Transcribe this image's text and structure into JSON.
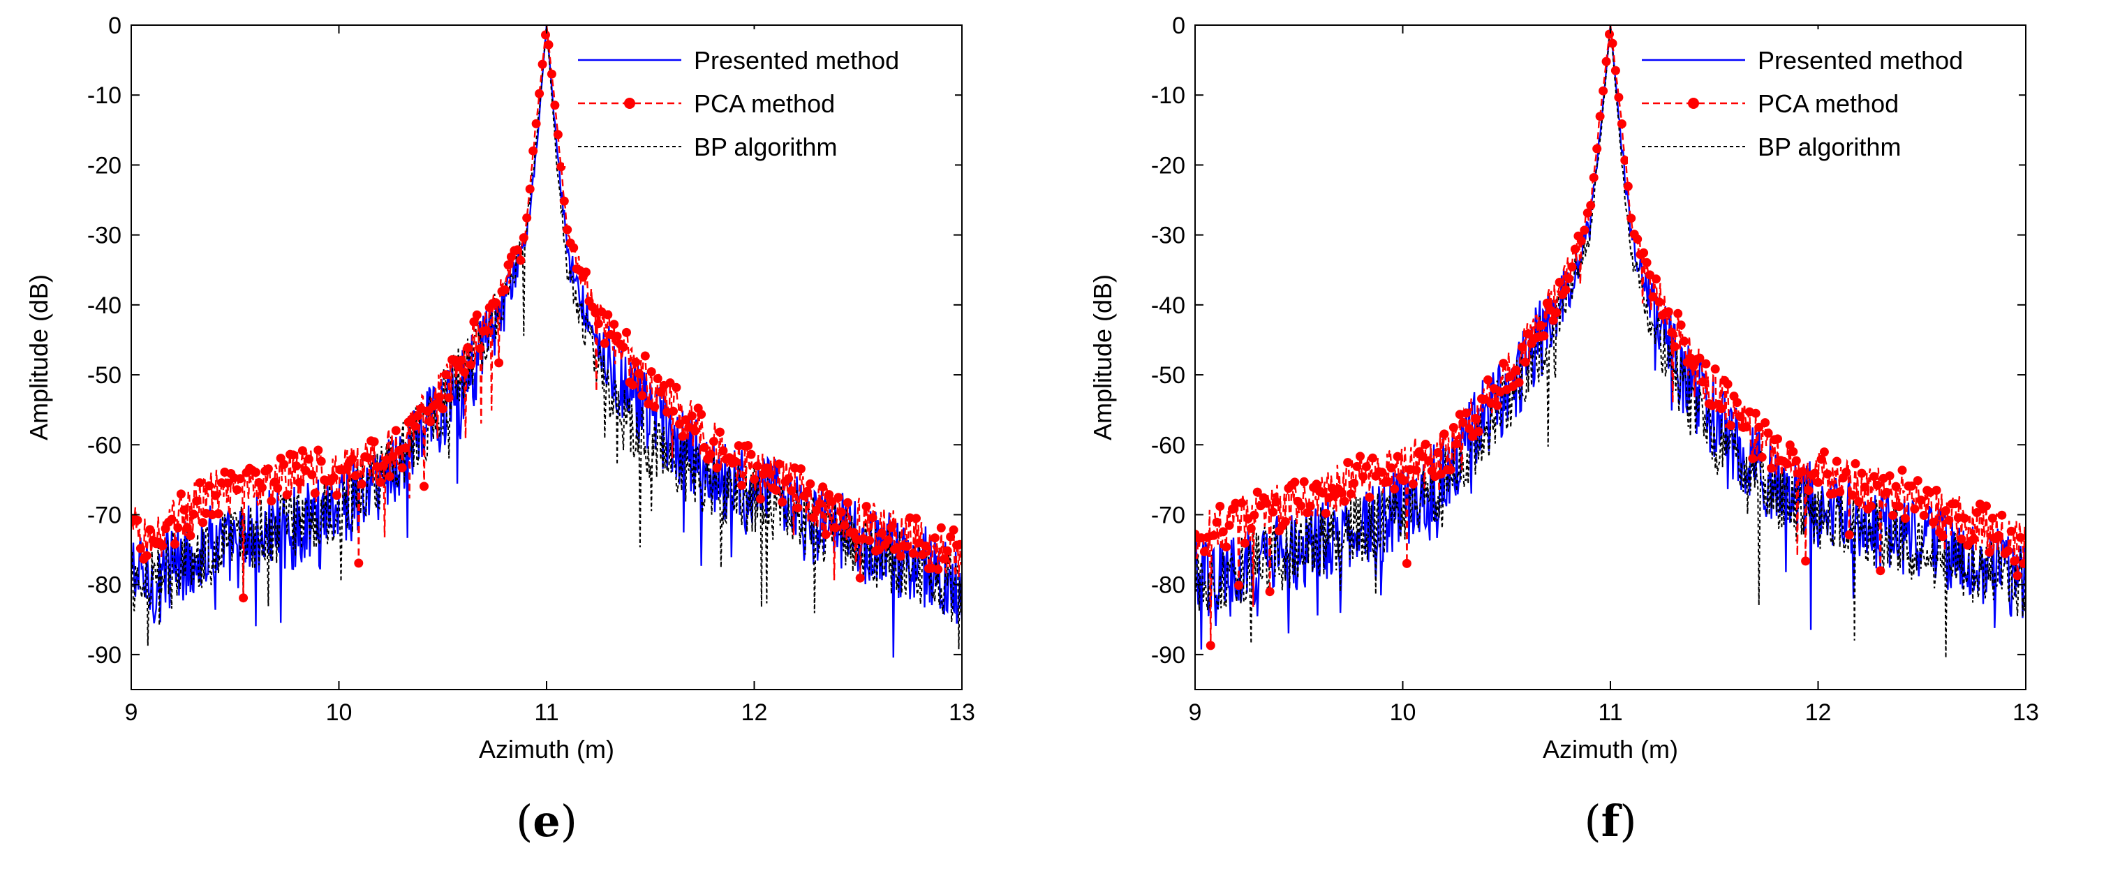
{
  "figure": {
    "legend": [
      "Presented method",
      "PCA method",
      "BP algorithm"
    ]
  },
  "colors": {
    "presented": "#0000ff",
    "pca": "#ff0000",
    "bp": "#000000"
  },
  "chart_data": [
    {
      "type": "line",
      "panel_label": "(e)",
      "xlabel": "Azimuth (m)",
      "ylabel": "Amplitude (dB)",
      "xlim": [
        9,
        13
      ],
      "ylim": [
        -95,
        0
      ],
      "xticks": [
        9,
        10,
        11,
        12,
        13
      ],
      "yticks": [
        0,
        -10,
        -20,
        -30,
        -40,
        -50,
        -60,
        -70,
        -80,
        -90
      ],
      "legend_position": "top-right",
      "series": [
        {
          "name": "Presented method",
          "style": "solid",
          "x": [
            9.0,
            9.1,
            9.2,
            9.3,
            9.4,
            9.5,
            9.6,
            9.7,
            9.8,
            9.9,
            10.0,
            10.1,
            10.2,
            10.3,
            10.4,
            10.5,
            10.6,
            10.7,
            10.8,
            10.9,
            10.95,
            11.0,
            11.05,
            11.1,
            11.2,
            11.3,
            11.4,
            11.5,
            11.6,
            11.7,
            11.8,
            11.9,
            12.0,
            12.1,
            12.2,
            12.3,
            12.4,
            12.5,
            12.6,
            12.7,
            12.8,
            12.9,
            13.0
          ],
          "values": [
            -78,
            -80,
            -77,
            -76,
            -74,
            -75,
            -73,
            -72,
            -72,
            -70,
            -68,
            -68,
            -65,
            -62,
            -58,
            -55,
            -52,
            -46,
            -40,
            -31,
            -18,
            0,
            -18,
            -32,
            -42,
            -48,
            -53,
            -56,
            -60,
            -62,
            -64,
            -66,
            -67,
            -68,
            -70,
            -72,
            -72,
            -74,
            -75,
            -76,
            -77,
            -79,
            -80
          ]
        },
        {
          "name": "PCA method",
          "style": "dashed-marker",
          "x": [
            9.0,
            9.1,
            9.2,
            9.3,
            9.4,
            9.5,
            9.6,
            9.7,
            9.8,
            9.9,
            10.0,
            10.1,
            10.2,
            10.3,
            10.4,
            10.5,
            10.6,
            10.7,
            10.8,
            10.9,
            10.95,
            11.0,
            11.05,
            11.1,
            11.2,
            11.3,
            11.4,
            11.5,
            11.6,
            11.7,
            11.8,
            11.9,
            12.0,
            12.1,
            12.2,
            12.3,
            12.4,
            12.5,
            12.6,
            12.7,
            12.8,
            12.9,
            13.0
          ],
          "values": [
            -72,
            -74,
            -71,
            -69,
            -67,
            -67,
            -66,
            -65,
            -64,
            -64,
            -64,
            -63,
            -62,
            -60,
            -56,
            -52,
            -48,
            -43,
            -37,
            -29,
            -14,
            0,
            -14,
            -30,
            -38,
            -44,
            -48,
            -51,
            -54,
            -57,
            -60,
            -62,
            -64,
            -65,
            -66,
            -69,
            -70,
            -71,
            -72,
            -73,
            -74,
            -75,
            -76
          ]
        },
        {
          "name": "BP algorithm",
          "style": "dotted",
          "x": [
            9.0,
            9.1,
            9.2,
            9.3,
            9.4,
            9.5,
            9.6,
            9.7,
            9.8,
            9.9,
            10.0,
            10.1,
            10.2,
            10.3,
            10.4,
            10.5,
            10.6,
            10.7,
            10.8,
            10.9,
            10.95,
            11.0,
            11.05,
            11.1,
            11.2,
            11.3,
            11.4,
            11.5,
            11.6,
            11.7,
            11.8,
            11.9,
            12.0,
            12.1,
            12.2,
            12.3,
            12.4,
            12.5,
            12.6,
            12.7,
            12.8,
            12.9,
            13.0
          ],
          "values": [
            -80,
            -79,
            -77,
            -76,
            -75,
            -74,
            -73,
            -72,
            -71,
            -70,
            -69,
            -67,
            -64,
            -61,
            -58,
            -54,
            -50,
            -45,
            -39,
            -30,
            -17,
            0,
            -20,
            -35,
            -45,
            -52,
            -58,
            -60,
            -62,
            -64,
            -66,
            -67,
            -68,
            -70,
            -71,
            -72,
            -73,
            -75,
            -76,
            -77,
            -78,
            -80,
            -81
          ]
        }
      ]
    },
    {
      "type": "line",
      "panel_label": "(f)",
      "xlabel": "Azimuth (m)",
      "ylabel": "Amplitude (dB)",
      "xlim": [
        9,
        13
      ],
      "ylim": [
        -95,
        0
      ],
      "xticks": [
        9,
        10,
        11,
        12,
        13
      ],
      "yticks": [
        0,
        -10,
        -20,
        -30,
        -40,
        -50,
        -60,
        -70,
        -80,
        -90
      ],
      "legend_position": "top-right",
      "series": [
        {
          "name": "Presented method",
          "style": "solid",
          "x": [
            9.0,
            9.1,
            9.2,
            9.3,
            9.4,
            9.5,
            9.6,
            9.7,
            9.8,
            9.9,
            10.0,
            10.1,
            10.2,
            10.3,
            10.4,
            10.5,
            10.6,
            10.7,
            10.8,
            10.9,
            10.95,
            11.0,
            11.05,
            11.1,
            11.2,
            11.3,
            11.4,
            11.5,
            11.6,
            11.7,
            11.8,
            11.9,
            12.0,
            12.1,
            12.2,
            12.3,
            12.4,
            12.5,
            12.6,
            12.7,
            12.8,
            12.9,
            13.0
          ],
          "values": [
            -79,
            -80,
            -78,
            -77,
            -76,
            -75,
            -74,
            -73,
            -72,
            -71,
            -69,
            -67,
            -64,
            -60,
            -56,
            -52,
            -48,
            -43,
            -37,
            -29,
            -16,
            0,
            -16,
            -30,
            -40,
            -47,
            -52,
            -56,
            -60,
            -63,
            -66,
            -67,
            -69,
            -70,
            -71,
            -72,
            -73,
            -74,
            -75,
            -76,
            -77,
            -78,
            -80
          ]
        },
        {
          "name": "PCA method",
          "style": "dashed-marker",
          "x": [
            9.0,
            9.1,
            9.2,
            9.3,
            9.4,
            9.5,
            9.6,
            9.7,
            9.8,
            9.9,
            10.0,
            10.1,
            10.2,
            10.3,
            10.4,
            10.5,
            10.6,
            10.7,
            10.8,
            10.9,
            10.95,
            11.0,
            11.05,
            11.1,
            11.2,
            11.3,
            11.4,
            11.5,
            11.6,
            11.7,
            11.8,
            11.9,
            12.0,
            12.1,
            12.2,
            12.3,
            12.4,
            12.5,
            12.6,
            12.7,
            12.8,
            12.9,
            13.0
          ],
          "values": [
            -74,
            -72,
            -71,
            -70,
            -69,
            -68,
            -67,
            -66,
            -65,
            -64,
            -63,
            -62,
            -61,
            -58,
            -54,
            -50,
            -46,
            -41,
            -35,
            -27,
            -13,
            0,
            -13,
            -28,
            -37,
            -43,
            -48,
            -52,
            -56,
            -59,
            -61,
            -63,
            -64,
            -65,
            -66,
            -66,
            -67,
            -69,
            -70,
            -71,
            -72,
            -73,
            -74
          ]
        },
        {
          "name": "BP algorithm",
          "style": "dotted",
          "x": [
            9.0,
            9.1,
            9.2,
            9.3,
            9.4,
            9.5,
            9.6,
            9.7,
            9.8,
            9.9,
            10.0,
            10.1,
            10.2,
            10.3,
            10.4,
            10.5,
            10.6,
            10.7,
            10.8,
            10.9,
            10.95,
            11.0,
            11.05,
            11.1,
            11.2,
            11.3,
            11.4,
            11.5,
            11.6,
            11.7,
            11.8,
            11.9,
            12.0,
            12.1,
            12.2,
            12.3,
            12.4,
            12.5,
            12.6,
            12.7,
            12.8,
            12.9,
            13.0
          ],
          "values": [
            -80,
            -79,
            -78,
            -77,
            -76,
            -75,
            -74,
            -73,
            -72,
            -71,
            -70,
            -68,
            -65,
            -62,
            -58,
            -54,
            -49,
            -44,
            -38,
            -30,
            -17,
            0,
            -18,
            -33,
            -43,
            -50,
            -55,
            -59,
            -62,
            -65,
            -67,
            -69,
            -70,
            -71,
            -72,
            -73,
            -74,
            -75,
            -76,
            -77,
            -78,
            -79,
            -80
          ]
        }
      ]
    }
  ]
}
